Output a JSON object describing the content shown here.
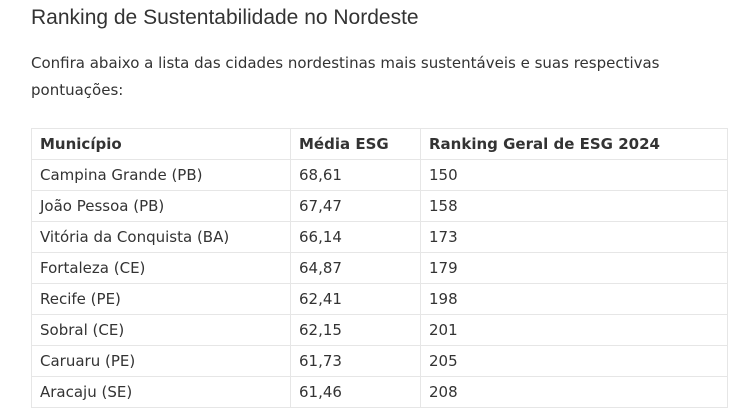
{
  "article": {
    "title": "Ranking de Sustentabilidade no Nordeste",
    "intro": "Confira abaixo a lista das cidades nordestinas mais sustentáveis e suas respectivas pontuações:"
  },
  "table": {
    "headers": [
      "Município",
      "Média ESG",
      "Ranking Geral de ESG 2024"
    ],
    "rows": [
      [
        "Campina Grande (PB)",
        "68,61",
        "150"
      ],
      [
        "João Pessoa (PB)",
        "67,47",
        "158"
      ],
      [
        "Vitória da Conquista (BA)",
        "66,14",
        "173"
      ],
      [
        "Fortaleza (CE)",
        "64,87",
        "179"
      ],
      [
        "Recife (PE)",
        "62,41",
        "198"
      ],
      [
        "Sobral (CE)",
        "62,15",
        "201"
      ],
      [
        "Caruaru (PE)",
        "61,73",
        "205"
      ],
      [
        "Aracaju (SE)",
        "61,46",
        "208"
      ]
    ]
  }
}
